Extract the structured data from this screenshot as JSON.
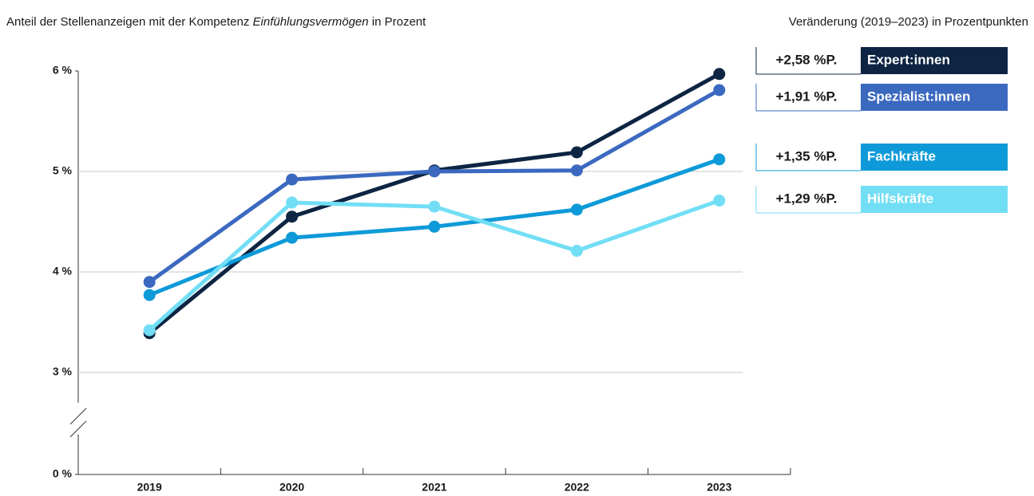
{
  "chart_data": {
    "type": "line",
    "title": "Anteil der Stellenanzeigen mit der Kompetenz",
    "title_emphasis": "Einfühlungsvermögen",
    "title_suffix": "in Prozent",
    "legend_title": "Veränderung (2019–2023) in Prozentpunkten",
    "categories": [
      "2019",
      "2020",
      "2021",
      "2022",
      "2023"
    ],
    "series": [
      {
        "name": "Expert:innen",
        "color": "#0d2443",
        "values": [
          3.39,
          4.55,
          5.01,
          5.19,
          5.97
        ],
        "change_label": "+2,58 %P."
      },
      {
        "name": "Spezialist:innen",
        "color": "#3b69c0",
        "values": [
          3.9,
          4.92,
          5.0,
          5.01,
          5.81
        ],
        "change_label": "+1,91 %P."
      },
      {
        "name": "Fachkräfte",
        "color": "#0e9ad8",
        "values": [
          3.77,
          4.34,
          4.45,
          4.62,
          5.12
        ],
        "change_label": "+1,35 %P."
      },
      {
        "name": "Hilfskräfte",
        "color": "#72def5",
        "values": [
          3.42,
          4.69,
          4.65,
          4.21,
          4.71
        ],
        "change_label": "+1,29 %P."
      }
    ],
    "ylim": [
      3,
      6
    ],
    "yticks": [
      {
        "value": 0,
        "label": "0 %"
      },
      {
        "value": 3,
        "label": "3 %"
      },
      {
        "value": 4,
        "label": "4 %"
      },
      {
        "value": 5,
        "label": "5 %"
      },
      {
        "value": 6,
        "label": "6 %"
      }
    ],
    "axis_break": true,
    "grid": true
  }
}
